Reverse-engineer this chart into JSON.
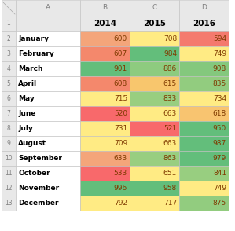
{
  "col_letters": [
    "A",
    "B",
    "C",
    "D"
  ],
  "col_headers": [
    "2014",
    "2015",
    "2016"
  ],
  "months": [
    "January",
    "February",
    "March",
    "April",
    "May",
    "June",
    "July",
    "August",
    "September",
    "October",
    "November",
    "December"
  ],
  "values": [
    [
      600,
      708,
      594
    ],
    [
      607,
      984,
      749
    ],
    [
      901,
      886,
      908
    ],
    [
      608,
      615,
      835
    ],
    [
      715,
      833,
      734
    ],
    [
      520,
      663,
      618
    ],
    [
      731,
      521,
      950
    ],
    [
      709,
      663,
      987
    ],
    [
      633,
      863,
      979
    ],
    [
      533,
      651,
      841
    ],
    [
      996,
      958,
      749
    ],
    [
      792,
      717,
      875
    ]
  ],
  "cell_colors": [
    [
      "#F4A57A",
      "#FFEB84",
      "#F47A6E"
    ],
    [
      "#F4886C",
      "#63BE7B",
      "#FFEB84"
    ],
    [
      "#63BE7B",
      "#8ECB7F",
      "#84C87D"
    ],
    [
      "#F4886C",
      "#F8C66D",
      "#92CC7F"
    ],
    [
      "#FFEB84",
      "#98CE80",
      "#FFEB84"
    ],
    [
      "#F8696B",
      "#FFEB84",
      "#F8C470"
    ],
    [
      "#FFEB84",
      "#F8696B",
      "#63BE7B"
    ],
    [
      "#FFEB84",
      "#FFEB84",
      "#63BE7B"
    ],
    [
      "#F4A57A",
      "#98CE80",
      "#63BE7B"
    ],
    [
      "#F8696B",
      "#FFEB84",
      "#98CE80"
    ],
    [
      "#63BE7B",
      "#63BE7B",
      "#FFEB84"
    ],
    [
      "#FFEB84",
      "#FFEB84",
      "#92CC7F"
    ]
  ],
  "header_bg": "#E8E8E8",
  "month_bg": "#FFFFFF",
  "grid_color": "#BFBFBF",
  "fig_bg": "#FFFFFF",
  "value_text_color": "#7F3A00",
  "month_text_color": "#000000",
  "header_letter_color": "#808080",
  "row_num_color": "#808080",
  "year_text_color": "#000000"
}
